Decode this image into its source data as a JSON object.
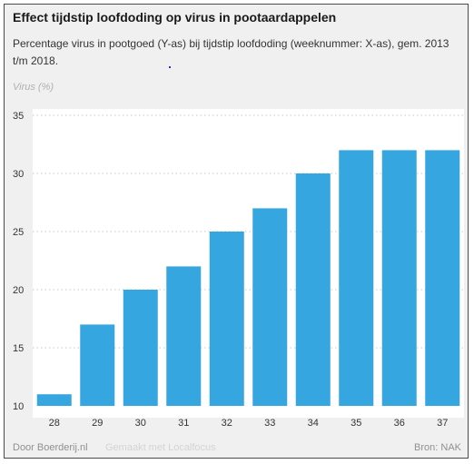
{
  "header": {
    "title": "Effect tijdstip loofdoding op virus in pootaardappelen",
    "subtitle": "Percentage virus in pootgoed (Y-as) bij tijdstip loofdoding (weeknummer: X-as), gem. 2013 t/m 2018."
  },
  "footer": {
    "credit": "Door Boerderij.nl",
    "made_with": "Gemaakt met Localfocus",
    "source": "Bron: NAK"
  },
  "chart_data": {
    "type": "bar",
    "title": "Effect tijdstip loofdoding op virus in pootaardappelen",
    "subtitle": "Percentage virus in pootgoed (Y-as) bij tijdstip loofdoding (weeknummer: X-as), gem. 2013 t/m 2018.",
    "ylabel": "Virus (%)",
    "xlabel": "",
    "categories": [
      "28",
      "29",
      "30",
      "31",
      "32",
      "33",
      "34",
      "35",
      "36",
      "37"
    ],
    "values": [
      11,
      17,
      20,
      22,
      25,
      27,
      30,
      32,
      32,
      32
    ],
    "ylim": [
      10,
      35
    ],
    "yticks": [
      10,
      15,
      20,
      25,
      30,
      35
    ],
    "grid": true,
    "bar_color": "#35a6e0"
  }
}
